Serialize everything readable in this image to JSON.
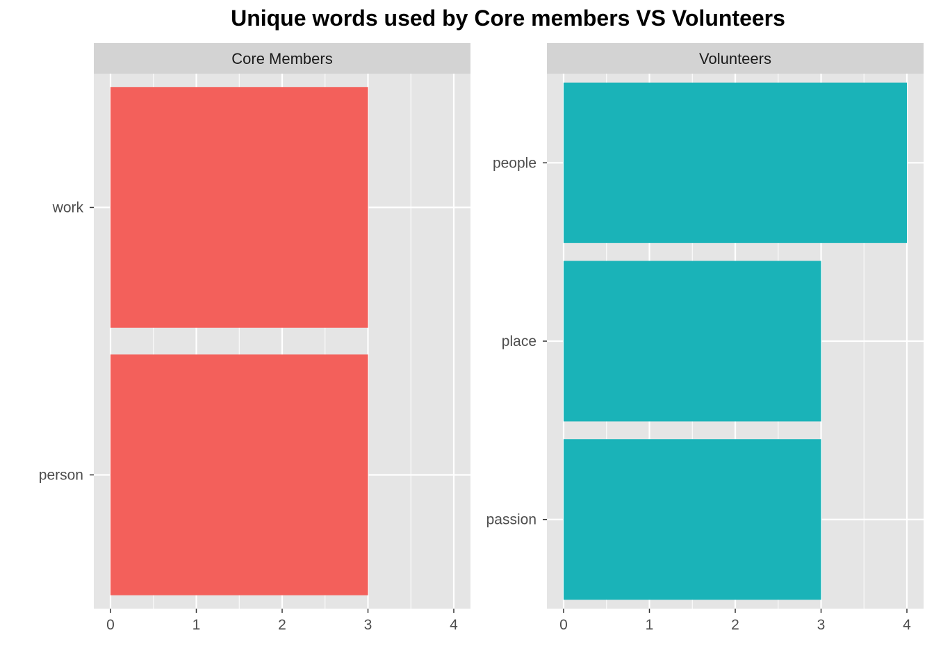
{
  "title": "Unique words used by Core members VS Volunteers",
  "colors": {
    "core": "#F3605B",
    "volunteers": "#1AB3B8",
    "panel_bg": "#E5E5E5",
    "strip_bg": "#D3D3D3",
    "grid": "#FFFFFF"
  },
  "chart_data": [
    {
      "type": "bar",
      "orientation": "horizontal",
      "facet_label": "Core Members",
      "categories": [
        "work",
        "person"
      ],
      "values": [
        3,
        3
      ],
      "xlim": [
        0,
        4.2
      ],
      "xticks": [
        "0",
        "1",
        "2",
        "3",
        "4"
      ],
      "color": "#F3605B"
    },
    {
      "type": "bar",
      "orientation": "horizontal",
      "facet_label": "Volunteers",
      "categories": [
        "people",
        "place",
        "passion"
      ],
      "values": [
        4,
        3,
        3
      ],
      "xlim": [
        0,
        4.2
      ],
      "xticks": [
        "0",
        "1",
        "2",
        "3",
        "4"
      ],
      "color": "#1AB3B8"
    }
  ]
}
